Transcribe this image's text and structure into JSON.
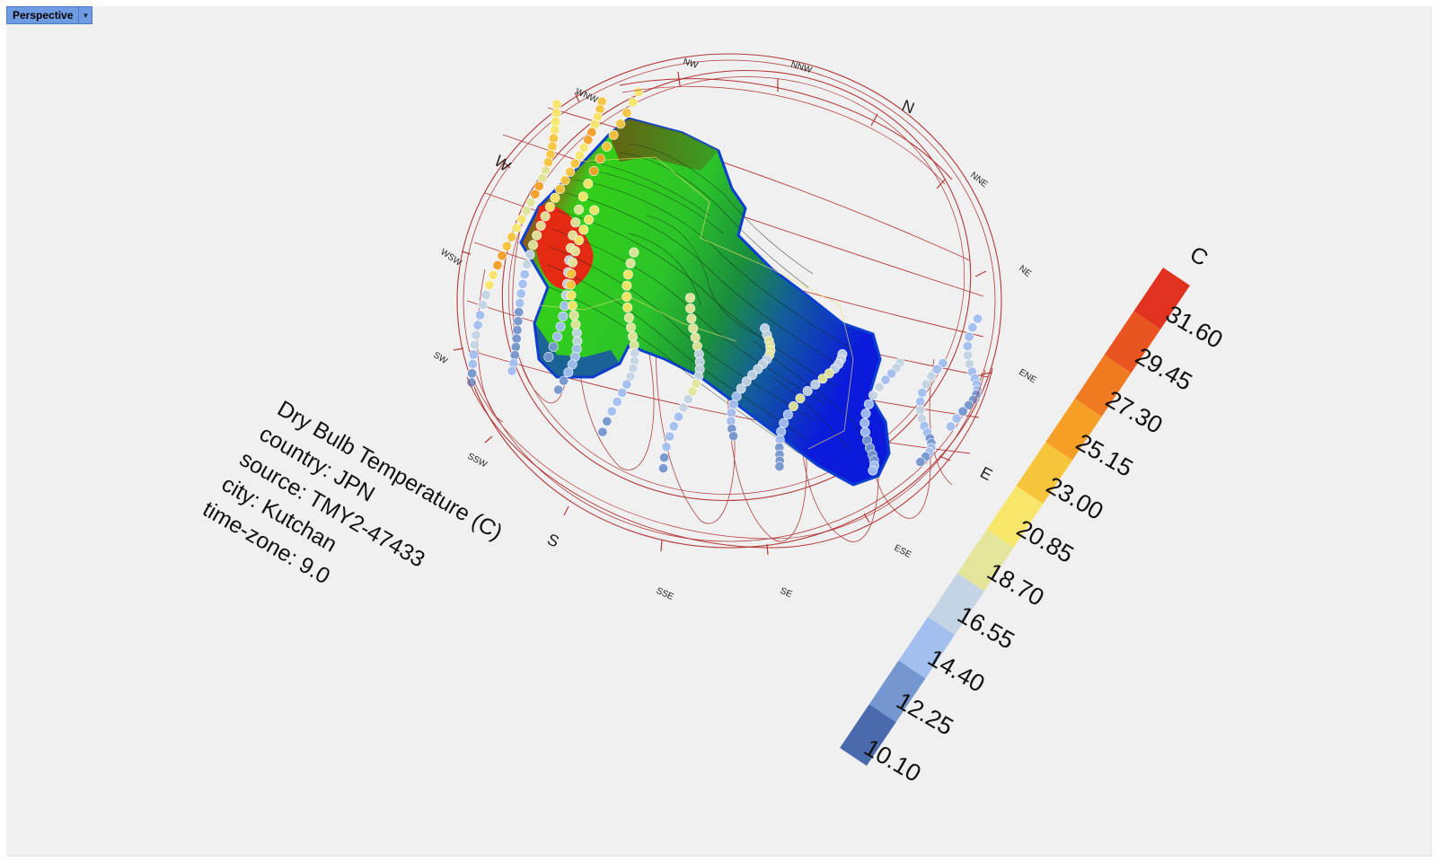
{
  "viewport": {
    "name": "Perspective"
  },
  "annotation": {
    "title": "Dry Bulb Temperature (C)",
    "country": "country: JPN",
    "source": "source: TMY2-47433",
    "city": "city: Kutchan",
    "timezone": "time-zone: 9.0"
  },
  "compass": {
    "N": "N",
    "NNE": "NNE",
    "NE": "NE",
    "ENE": "ENE",
    "E": "E",
    "ESE": "ESE",
    "SE": "SE",
    "SSE": "SSE",
    "S": "S",
    "SSW": "SSW",
    "SW": "SW",
    "WSW": "WSW",
    "W": "W",
    "WNW": "WNW",
    "NW": "NW",
    "NNW": "NNW"
  },
  "legend": {
    "unit": "C",
    "values": [
      "31.60",
      "29.45",
      "27.30",
      "25.15",
      "23.00",
      "20.85",
      "18.70",
      "16.55",
      "14.40",
      "12.25",
      "10.10"
    ],
    "colors": [
      "#e0321e",
      "#ea5420",
      "#ef7a22",
      "#f59f26",
      "#f7c53c",
      "#f8e66a",
      "#e2e59a",
      "#c4d4e4",
      "#a3bfef",
      "#7596cf",
      "#4b6aae"
    ]
  }
}
